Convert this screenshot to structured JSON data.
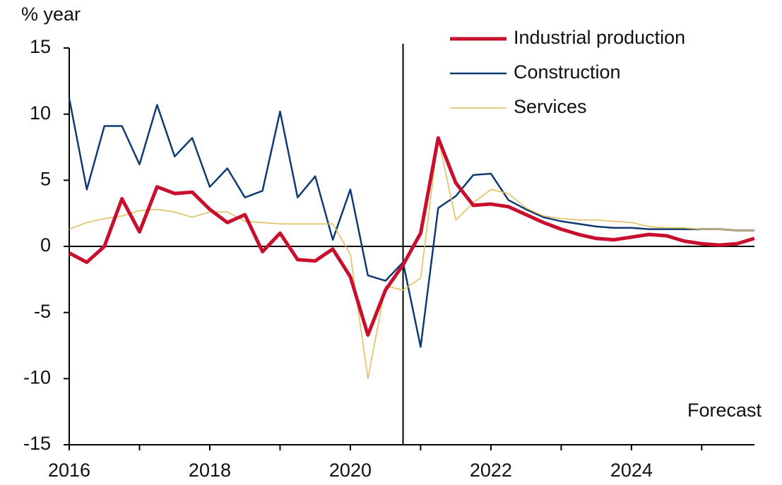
{
  "chart_data": {
    "type": "line",
    "ylabel": "% year",
    "annotation": "Forecast",
    "forecast_start": 2020.75,
    "x": [
      2016,
      2016.25,
      2016.5,
      2016.75,
      2017,
      2017.25,
      2017.5,
      2017.75,
      2018,
      2018.25,
      2018.5,
      2018.75,
      2019,
      2019.25,
      2019.5,
      2019.75,
      2020,
      2020.25,
      2020.5,
      2020.75,
      2021,
      2021.25,
      2021.5,
      2021.75,
      2022,
      2022.25,
      2022.5,
      2022.75,
      2023,
      2023.25,
      2023.5,
      2023.75,
      2024,
      2024.25,
      2024.5,
      2024.75,
      2025,
      2025.25,
      2025.5,
      2025.75
    ],
    "series": [
      {
        "name": "Industrial production",
        "color": "#c8102e",
        "linewidth": 5,
        "values": [
          -0.5,
          -1.2,
          0,
          3.6,
          1.1,
          4.5,
          4.0,
          4.1,
          2.8,
          1.8,
          2.4,
          -0.4,
          1.0,
          -1.0,
          -1.1,
          -0.2,
          -2.3,
          -6.7,
          -3.3,
          -1.4,
          1.0,
          8.2,
          4.8,
          3.1,
          3.2,
          3.0,
          2.4,
          1.8,
          1.3,
          0.9,
          0.6,
          0.5,
          0.7,
          0.9,
          0.8,
          0.4,
          0.2,
          0.1,
          0.2,
          0.6
        ]
      },
      {
        "name": "Construction",
        "color": "#0f3b73",
        "linewidth": 2.5,
        "values": [
          11.2,
          4.3,
          9.1,
          9.1,
          6.2,
          10.7,
          6.8,
          8.2,
          4.5,
          5.9,
          3.7,
          4.2,
          10.2,
          3.7,
          5.3,
          0.5,
          4.3,
          -2.2,
          -2.6,
          -1.2,
          -7.6,
          2.9,
          3.8,
          5.4,
          5.5,
          3.5,
          2.8,
          2.2,
          1.9,
          1.7,
          1.5,
          1.4,
          1.4,
          1.3,
          1.3,
          1.3,
          1.3,
          1.3,
          1.2,
          1.2
        ]
      },
      {
        "name": "Services",
        "color": "#e3bf62",
        "linewidth": 1.6,
        "values": [
          1.3,
          1.8,
          2.1,
          2.3,
          2.7,
          2.8,
          2.6,
          2.2,
          2.6,
          2.6,
          1.9,
          1.8,
          1.7,
          1.7,
          1.7,
          1.7,
          -0.6,
          -10.0,
          -3.0,
          -3.3,
          -2.4,
          8.2,
          2.0,
          3.3,
          4.3,
          4.0,
          2.9,
          2.3,
          2.1,
          2.0,
          2.0,
          1.9,
          1.8,
          1.5,
          1.4,
          1.4,
          1.3,
          1.3,
          1.2,
          1.2
        ]
      }
    ],
    "xlim": [
      2016,
      2025.75
    ],
    "xticks": [
      2016,
      2018,
      2020,
      2022,
      2024
    ],
    "xticks_minor": [
      2017,
      2019,
      2021,
      2023,
      2025
    ],
    "ylim": [
      -15,
      15
    ],
    "yticks": [
      -15,
      -10,
      -5,
      0,
      5,
      10,
      15
    ],
    "grid": false,
    "legend": "upper right"
  }
}
